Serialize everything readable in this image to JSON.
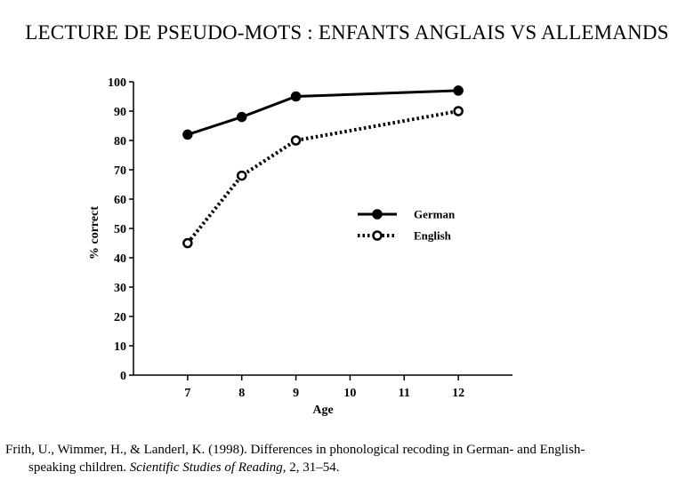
{
  "slide": {
    "title": "LECTURE DE PSEUDO-MOTS : ENFANTS ANGLAIS VS ALLEMANDS"
  },
  "citation": {
    "line1": "Frith, U., Wimmer, H., & Landerl, K. (1998). Differences in phonological recoding in German- and English-",
    "line2_prefix": "speaking children. ",
    "journal": "Scientific Studies of Reading",
    "line2_suffix": ", 2, 31–54."
  },
  "chart_data": {
    "type": "line",
    "title": "",
    "xlabel": "Age",
    "ylabel": "% correct",
    "x_ticks": [
      7,
      8,
      9,
      10,
      11,
      12
    ],
    "y_ticks": [
      0,
      10,
      20,
      30,
      40,
      50,
      60,
      70,
      80,
      90,
      100
    ],
    "xlim": [
      6,
      13
    ],
    "ylim": [
      0,
      100
    ],
    "grid": false,
    "legend_position": "center-right",
    "series": [
      {
        "name": "German",
        "marker": "filled-circle",
        "line_style": "solid",
        "color": "#000000",
        "points": [
          {
            "x": 7,
            "y": 82
          },
          {
            "x": 8,
            "y": 88
          },
          {
            "x": 9,
            "y": 95
          },
          {
            "x": 12,
            "y": 97
          }
        ]
      },
      {
        "name": "English",
        "marker": "open-circle",
        "line_style": "dotted",
        "color": "#000000",
        "points": [
          {
            "x": 7,
            "y": 45
          },
          {
            "x": 8,
            "y": 68
          },
          {
            "x": 9,
            "y": 80
          },
          {
            "x": 12,
            "y": 90
          }
        ]
      }
    ]
  }
}
